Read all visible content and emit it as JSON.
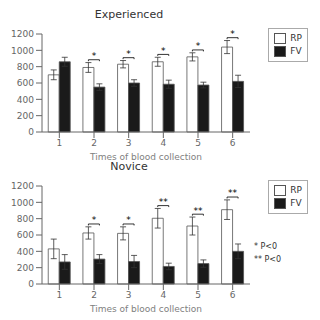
{
  "chart_data": [
    {
      "type": "bar",
      "title": "Experienced",
      "x_label": "Times of blood collection",
      "categories": [
        "1",
        "2",
        "3",
        "4",
        "5",
        "6"
      ],
      "series": [
        {
          "name": "RP",
          "color": "#ffffff",
          "values": [
            700,
            790,
            830,
            860,
            920,
            1040
          ],
          "errors": [
            60,
            60,
            45,
            55,
            50,
            80
          ]
        },
        {
          "name": "FV",
          "color": "#1a1a1a",
          "values": [
            860,
            550,
            600,
            585,
            575,
            620
          ],
          "errors": [
            55,
            40,
            40,
            50,
            35,
            75
          ]
        }
      ],
      "significance": [
        null,
        "*",
        "*",
        "*",
        "*",
        "*"
      ],
      "ylim": [
        0,
        1200
      ],
      "yticks": [
        0,
        200,
        400,
        600,
        800,
        1000,
        1200
      ],
      "grid": false,
      "legend": "right"
    },
    {
      "type": "bar",
      "title": "Novice",
      "x_label": "Times of blood collection",
      "categories": [
        "1",
        "2",
        "3",
        "4",
        "5",
        "6"
      ],
      "series": [
        {
          "name": "RP",
          "color": "#ffffff",
          "values": [
            430,
            625,
            620,
            805,
            710,
            910
          ],
          "errors": [
            120,
            75,
            80,
            120,
            110,
            120
          ]
        },
        {
          "name": "FV",
          "color": "#1a1a1a",
          "values": [
            270,
            305,
            275,
            215,
            250,
            400
          ],
          "errors": [
            90,
            55,
            75,
            40,
            45,
            90
          ]
        }
      ],
      "significance": [
        null,
        "*",
        "*",
        "**",
        "**",
        "**"
      ],
      "annotations": [
        "* P<0",
        "** P<0"
      ],
      "ylim": [
        0,
        1200
      ],
      "yticks": [
        0,
        200,
        400,
        600,
        800,
        1000,
        1200
      ],
      "grid": false,
      "legend": "right"
    }
  ]
}
